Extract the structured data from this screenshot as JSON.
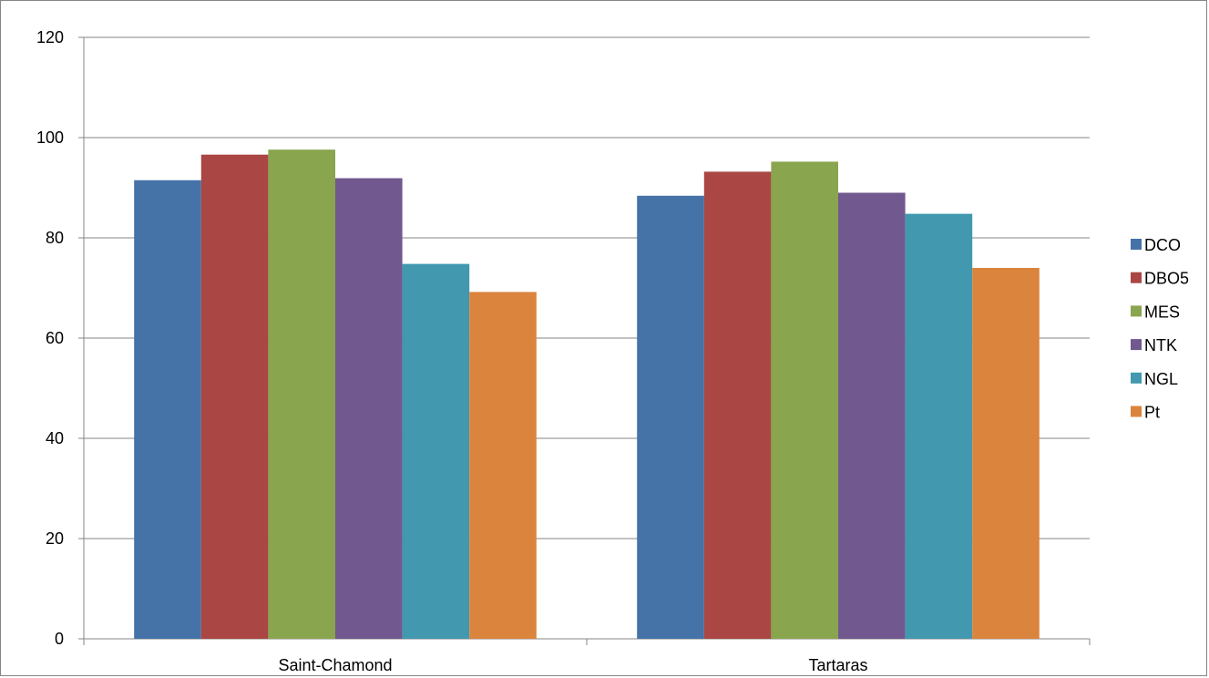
{
  "chart_data": {
    "type": "bar",
    "title": "",
    "xlabel": "",
    "ylabel": "",
    "categories": [
      "Saint-Chamond",
      "Tartaras"
    ],
    "ylim": [
      0,
      120
    ],
    "yticks": [
      0,
      20,
      40,
      60,
      80,
      100,
      120
    ],
    "grid": true,
    "legend_position": "right",
    "series": [
      {
        "name": "DCO",
        "color": "#4572A7",
        "values": [
          91.5,
          88.4
        ]
      },
      {
        "name": "DBO5",
        "color": "#AA4643",
        "values": [
          96.6,
          93.2
        ]
      },
      {
        "name": "MES",
        "color": "#89A54E",
        "values": [
          97.6,
          95.2
        ]
      },
      {
        "name": "NTK",
        "color": "#71588F",
        "values": [
          91.9,
          89.0
        ]
      },
      {
        "name": "NGL",
        "color": "#4198AF",
        "values": [
          74.8,
          84.8
        ]
      },
      {
        "name": "Pt",
        "color": "#DB843D",
        "values": [
          69.2,
          74.0
        ]
      }
    ]
  }
}
